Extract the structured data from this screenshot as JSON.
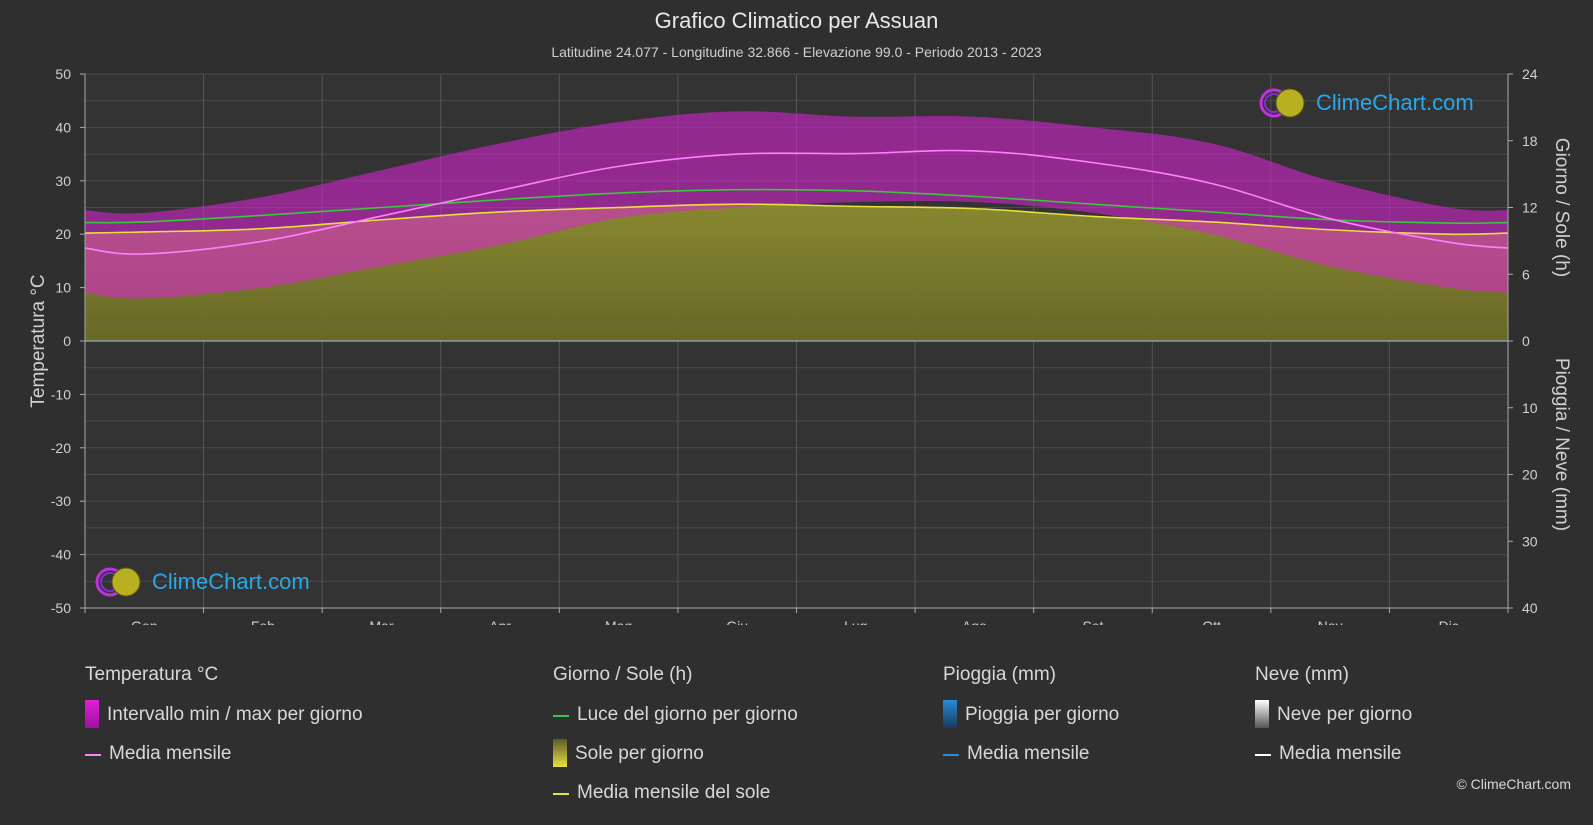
{
  "title": "Grafico Climatico per Assuan",
  "subtitle": "Latitudine 24.077 - Longitudine 32.866 - Elevazione 99.0 - Periodo 2013 - 2023",
  "logo_text": "ClimeChart.com",
  "copyright": "© ClimeChart.com",
  "colors": {
    "background": "#2f2f2f",
    "temp_range": "#e020d8",
    "temp_mean": "#ff80ff",
    "daylight": "#38c838",
    "sunshine": "#8a8a2c",
    "sunshine_mean": "#e8e040",
    "rain": "#2a8ad8",
    "snow": "#ffffff",
    "logo": "#29a8e8"
  },
  "legend": {
    "temperature": {
      "head": "Temperatura °C",
      "range": "Intervallo min / max per giorno",
      "mean": "Media mensile"
    },
    "sun": {
      "head": "Giorno / Sole (h)",
      "daylight": "Luce del giorno per giorno",
      "sunshine": "Sole per giorno",
      "sunshine_mean": "Media mensile del sole"
    },
    "rain": {
      "head": "Pioggia (mm)",
      "daily": "Pioggia per giorno",
      "mean": "Media mensile"
    },
    "snow": {
      "head": "Neve (mm)",
      "daily": "Neve per giorno",
      "mean": "Media mensile"
    }
  },
  "chart_data": {
    "type": "area",
    "title": "Grafico Climatico per Assuan",
    "categories": [
      "Gen",
      "Feb",
      "Mar",
      "Apr",
      "Mag",
      "Giu",
      "Lug",
      "Ago",
      "Set",
      "Ott",
      "Nov",
      "Dic"
    ],
    "y_left": {
      "label": "Temperatura °C",
      "range": [
        -50,
        50
      ],
      "ticks": [
        50,
        40,
        30,
        20,
        10,
        0,
        -10,
        -20,
        -30,
        -40,
        -50
      ]
    },
    "y_right_top": {
      "label": "Giorno / Sole (h)",
      "range": [
        0,
        24
      ],
      "ticks": [
        24,
        18,
        12,
        6,
        0
      ]
    },
    "y_right_bottom": {
      "label": "Pioggia / Neve (mm)",
      "range": [
        0,
        40
      ],
      "ticks": [
        0,
        10,
        20,
        30,
        40
      ]
    },
    "grid": true,
    "series": [
      {
        "name": "Media mensile",
        "kind": "temp_mean",
        "values": [
          16.3,
          18.7,
          23.4,
          28.2,
          32.7,
          35.0,
          35.1,
          35.6,
          33.4,
          29.5,
          22.9,
          18.5
        ]
      },
      {
        "name": "Intervallo min / max per giorno",
        "kind": "temp_range",
        "max": [
          24,
          27,
          32,
          37,
          41,
          43,
          42,
          42,
          40,
          37,
          30,
          25
        ],
        "min": [
          8,
          10,
          14,
          18,
          23,
          25,
          26,
          26,
          24,
          20,
          14,
          10
        ]
      },
      {
        "name": "Luce del giorno per giorno",
        "kind": "daylight",
        "values": [
          10.7,
          11.3,
          12.0,
          12.7,
          13.3,
          13.6,
          13.5,
          13.0,
          12.3,
          11.6,
          10.9,
          10.6
        ]
      },
      {
        "name": "Media mensile del sole",
        "kind": "sunshine_mean",
        "values": [
          9.8,
          10.1,
          10.9,
          11.6,
          12.0,
          12.3,
          12.1,
          11.9,
          11.2,
          10.7,
          10.0,
          9.6
        ]
      },
      {
        "name": "Pioggia per giorno",
        "kind": "rain",
        "values": [
          0,
          0,
          0,
          0,
          0,
          0,
          0,
          0,
          0,
          0,
          0,
          0
        ]
      },
      {
        "name": "Neve per giorno",
        "kind": "snow",
        "values": [
          0,
          0,
          0,
          0,
          0,
          0,
          0,
          0,
          0,
          0,
          0,
          0
        ]
      }
    ]
  }
}
